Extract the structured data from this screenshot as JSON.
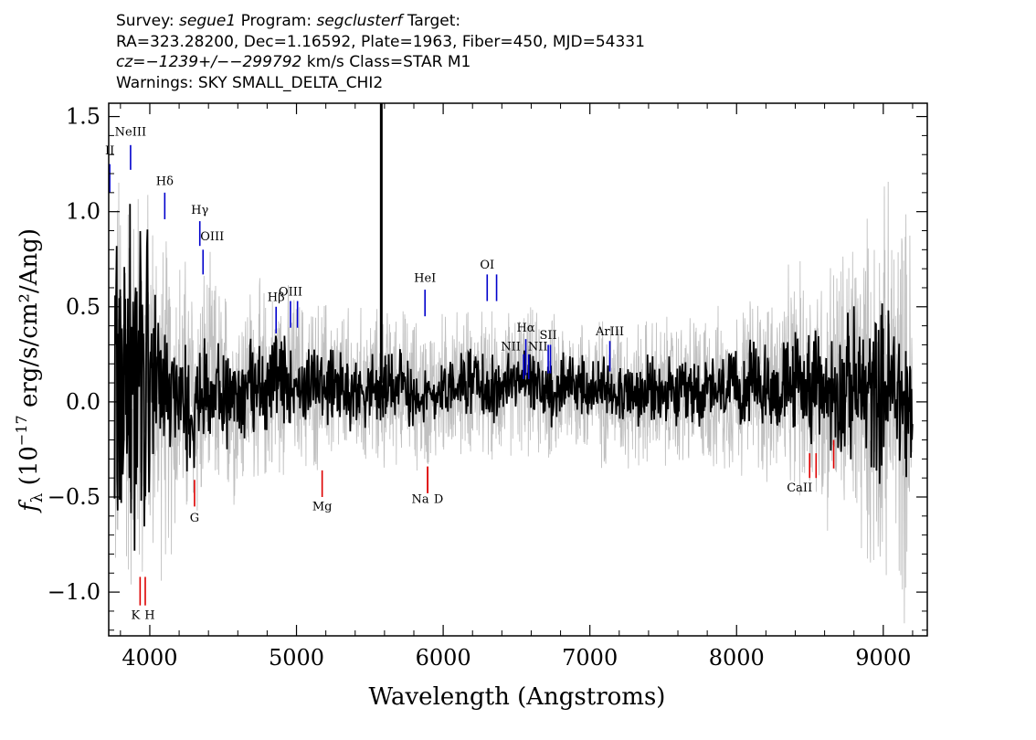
{
  "header": {
    "line1": {
      "survey_label": "Survey:",
      "survey": "segue1",
      "program_label": "Program:",
      "program": "segclusterf",
      "target_label": "Target:"
    },
    "line2": "RA=323.28200, Dec=1.16592, Plate=1963, Fiber=450, MJD=54331",
    "line3": {
      "cz": "cz=−1239+/−−299792",
      "rest": "km/s Class=STAR M1"
    },
    "line4": "Warnings: SKY SMALL_DELTA_CHI2"
  },
  "chart_data": {
    "type": "line",
    "xlabel": "Wavelength (Angstroms)",
    "ylabel": "f_λ (10^-17 erg/s/cm²/Ang)",
    "xlim": [
      3720,
      9300
    ],
    "ylim": [
      -1.23,
      1.57
    ],
    "x_ticks": [
      4000,
      5000,
      6000,
      7000,
      8000,
      9000
    ],
    "y_ticks": [
      -1.0,
      -0.5,
      0.0,
      0.5,
      1.0,
      1.5
    ],
    "y_tick_labels": [
      "−1.0",
      "−0.5",
      "0.0",
      "0.5",
      "1.0",
      "1.5"
    ],
    "grid": false,
    "series": [
      {
        "name": "",
        "color": "#c0c0c0",
        "role": "error",
        "x": [
          3800,
          3900,
          4000,
          4200,
          4500,
          5000,
          5500,
          6000,
          6500,
          7000,
          7500,
          8000,
          8400,
          8600,
          8800,
          9000,
          9200
        ],
        "y": [
          0.8,
          0.75,
          0.65,
          0.5,
          0.38,
          0.3,
          0.27,
          0.25,
          0.25,
          0.25,
          0.26,
          0.28,
          0.38,
          0.45,
          0.55,
          0.65,
          0.7
        ]
      },
      {
        "name": "",
        "color": "#000000",
        "role": "flux",
        "x": [
          3800,
          3850,
          3900,
          3950,
          4000,
          4100,
          4200,
          4300,
          4400,
          4500,
          4600,
          4700,
          4800,
          4900,
          5000,
          5100,
          5200,
          5300,
          5400,
          5500,
          5580,
          5600,
          5700,
          5800,
          5900,
          6000,
          6100,
          6200,
          6300,
          6400,
          6500,
          6600,
          6700,
          6800,
          6900,
          7000,
          7100,
          7200,
          7300,
          7400,
          7500,
          7600,
          7700,
          7800,
          7900,
          8000,
          8100,
          8200,
          8300,
          8400,
          8500,
          8600,
          8700,
          8800,
          8900,
          9000,
          9100,
          9200
        ],
        "y": [
          0.05,
          0.15,
          0.1,
          0.05,
          0.12,
          0.0,
          0.05,
          0.0,
          0.08,
          0.02,
          0.05,
          0.1,
          0.08,
          0.12,
          0.1,
          0.08,
          0.1,
          0.07,
          0.05,
          0.08,
          0.05,
          0.06,
          0.1,
          0.05,
          0.02,
          0.08,
          0.1,
          0.12,
          0.05,
          0.08,
          0.12,
          0.1,
          0.05,
          0.08,
          0.1,
          0.05,
          0.06,
          0.08,
          0.02,
          0.05,
          0.04,
          0.03,
          0.05,
          0.06,
          0.05,
          0.07,
          0.1,
          0.08,
          0.05,
          0.12,
          0.08,
          0.05,
          0.06,
          0.08,
          0.03,
          0.08,
          0.05,
          -0.1
        ]
      }
    ],
    "spike": {
      "x": 5578,
      "y": 1.57
    },
    "emission_lines": [
      {
        "label": "II",
        "x": 3727,
        "label_y": 1.3,
        "y1": 1.25,
        "y2": 1.1
      },
      {
        "label": "NeIII",
        "x": 3869,
        "label_y": 1.4,
        "y1": 1.35,
        "y2": 1.22
      },
      {
        "label": "Hδ",
        "x": 4102,
        "label_y": 1.14,
        "y1": 1.1,
        "y2": 0.96
      },
      {
        "label": "Hγ",
        "x": 4341,
        "label_y": 0.99,
        "y1": 0.95,
        "y2": 0.82
      },
      {
        "label": "OIII",
        "x": 4363,
        "label_y": 0.85,
        "y1": 0.8,
        "y2": 0.67
      },
      {
        "label": "Hβ",
        "x": 4861,
        "label_y": 0.53,
        "y1": 0.5,
        "y2": 0.36
      },
      {
        "label": "OIII",
        "x": 4959,
        "label_y": 0.56,
        "y1": 0.53,
        "y2": 0.39
      },
      {
        "label": "",
        "x": 5007,
        "label_y": 0.56,
        "y1": 0.53,
        "y2": 0.39
      },
      {
        "label": "HeI",
        "x": 5876,
        "label_y": 0.63,
        "y1": 0.59,
        "y2": 0.45
      },
      {
        "label": "OI",
        "x": 6300,
        "label_y": 0.7,
        "y1": 0.67,
        "y2": 0.53
      },
      {
        "label": "",
        "x": 6364,
        "label_y": 0.7,
        "y1": 0.67,
        "y2": 0.53
      },
      {
        "label": "NII",
        "x": 6548,
        "label_y": 0.27,
        "y1": 0.25,
        "y2": 0.12
      },
      {
        "label": "Hα",
        "x": 6563,
        "label_y": 0.37,
        "y1": 0.33,
        "y2": 0.14
      },
      {
        "label": "NII",
        "x": 6583,
        "label_y": 0.27,
        "y1": 0.25,
        "y2": 0.12
      },
      {
        "label": "SII",
        "x": 6716,
        "label_y": 0.33,
        "y1": 0.3,
        "y2": 0.15
      },
      {
        "label": "",
        "x": 6731,
        "label_y": 0.33,
        "y1": 0.3,
        "y2": 0.15
      },
      {
        "label": "ArIII",
        "x": 7136,
        "label_y": 0.35,
        "y1": 0.32,
        "y2": 0.16
      }
    ],
    "absorption_lines": [
      {
        "label": "K",
        "x": 3934,
        "label_y": -1.14,
        "y1": -1.07,
        "y2": -0.92
      },
      {
        "label": "H",
        "x": 3969,
        "label_y": -1.14,
        "y1": -1.07,
        "y2": -0.92
      },
      {
        "label": "G",
        "x": 4305,
        "label_y": -0.63,
        "y1": -0.55,
        "y2": -0.41
      },
      {
        "label": "Mg",
        "x": 5175,
        "label_y": -0.57,
        "y1": -0.5,
        "y2": -0.36
      },
      {
        "label": "Na",
        "x": 5894,
        "label_y": -0.53,
        "y1": -0.48,
        "y2": -0.34
      },
      {
        "label": "D",
        "x": 5894,
        "label_y": -0.53,
        "y1": -0.48,
        "y2": -0.34
      },
      {
        "label": "CaII",
        "x": 8498,
        "label_y": -0.47,
        "y1": -0.4,
        "y2": -0.27
      },
      {
        "label": "",
        "x": 8542,
        "label_y": -0.47,
        "y1": -0.4,
        "y2": -0.27
      },
      {
        "label": "",
        "x": 8662,
        "label_y": -0.47,
        "y1": -0.35,
        "y2": -0.2
      }
    ],
    "line_colors": {
      "emission": "#0000cc",
      "absorption": "#dd0000"
    }
  }
}
